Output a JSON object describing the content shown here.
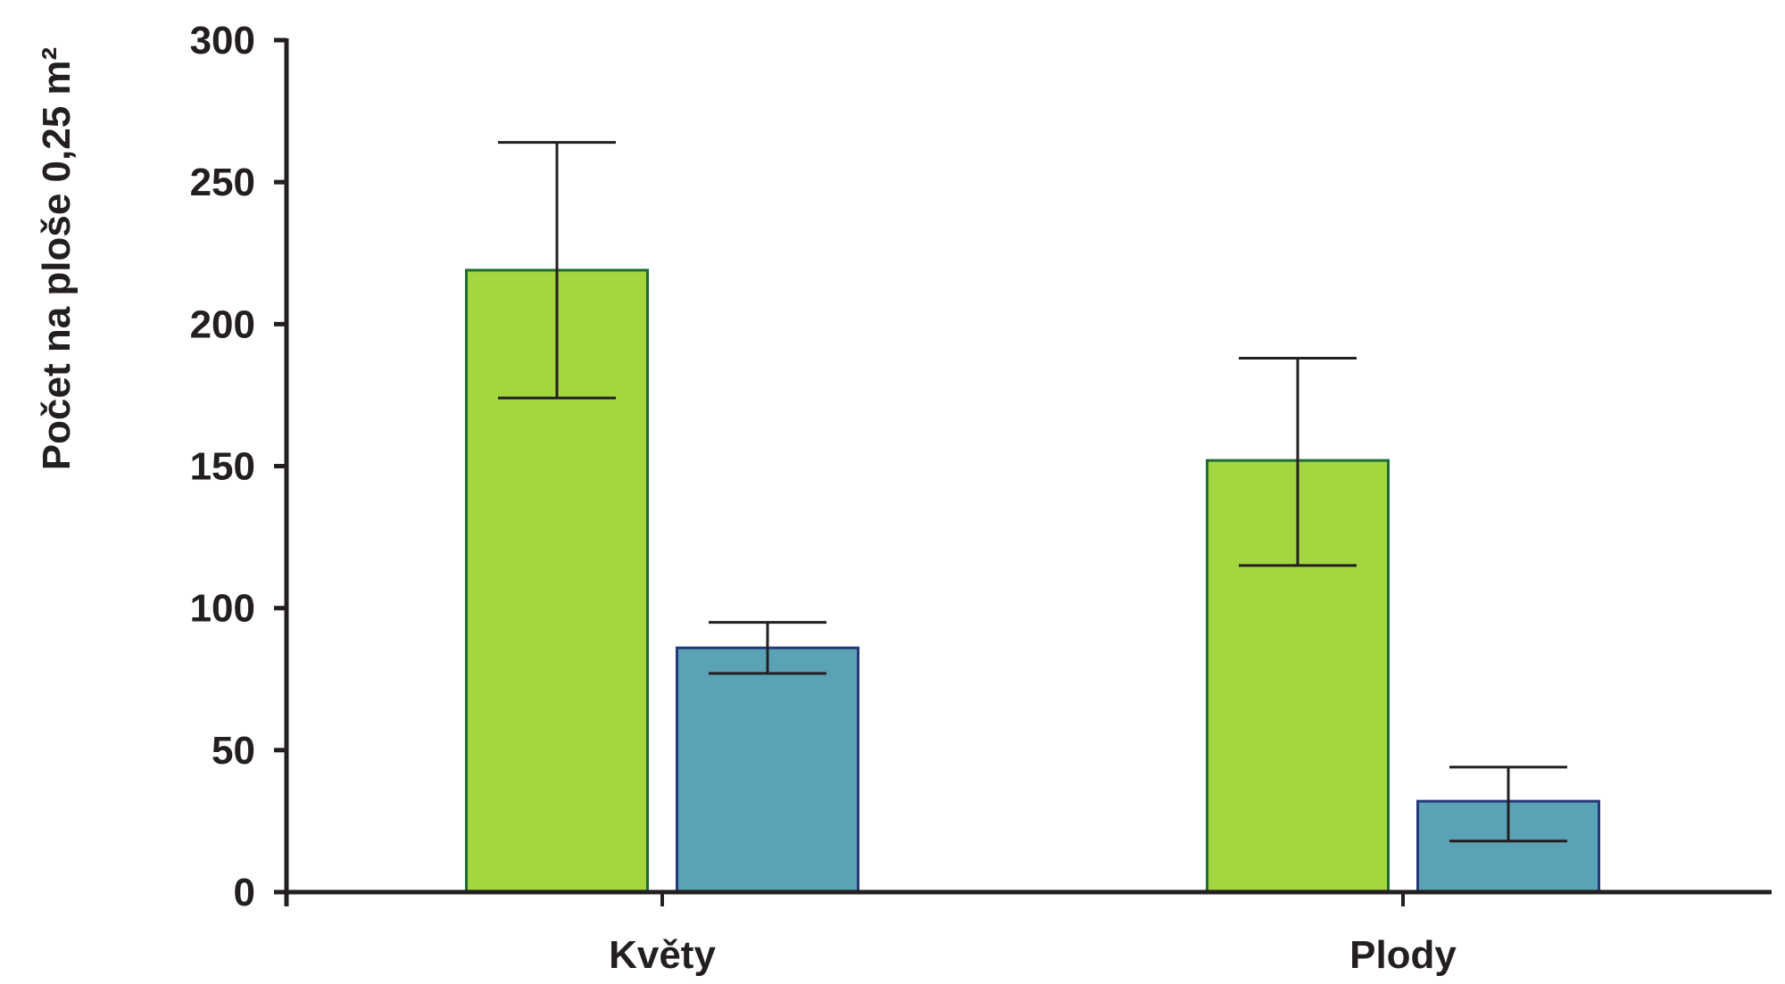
{
  "chart_data": {
    "type": "bar",
    "categories": [
      "Květy",
      "Plody"
    ],
    "series": [
      {
        "values": [
          219,
          152
        ],
        "error_upper": [
          264,
          188
        ],
        "error_lower": [
          174,
          115
        ],
        "color": "#a4d63f",
        "stroke": "#1f6b34"
      },
      {
        "values": [
          86,
          32
        ],
        "error_upper": [
          95,
          44
        ],
        "error_lower": [
          77,
          18
        ],
        "color": "#5aa3b7",
        "stroke": "#24387a"
      }
    ],
    "xlabel": "",
    "ylabel": "Počet na ploše 0,25 m²",
    "ylim": [
      0,
      300
    ],
    "yticks": [
      "0",
      "50",
      "100",
      "150",
      "200",
      "250",
      "300"
    ],
    "grid": false,
    "legend": "none"
  },
  "colors": {
    "axis": "#231f20",
    "text": "#231f20",
    "error_bar": "#231f20"
  }
}
